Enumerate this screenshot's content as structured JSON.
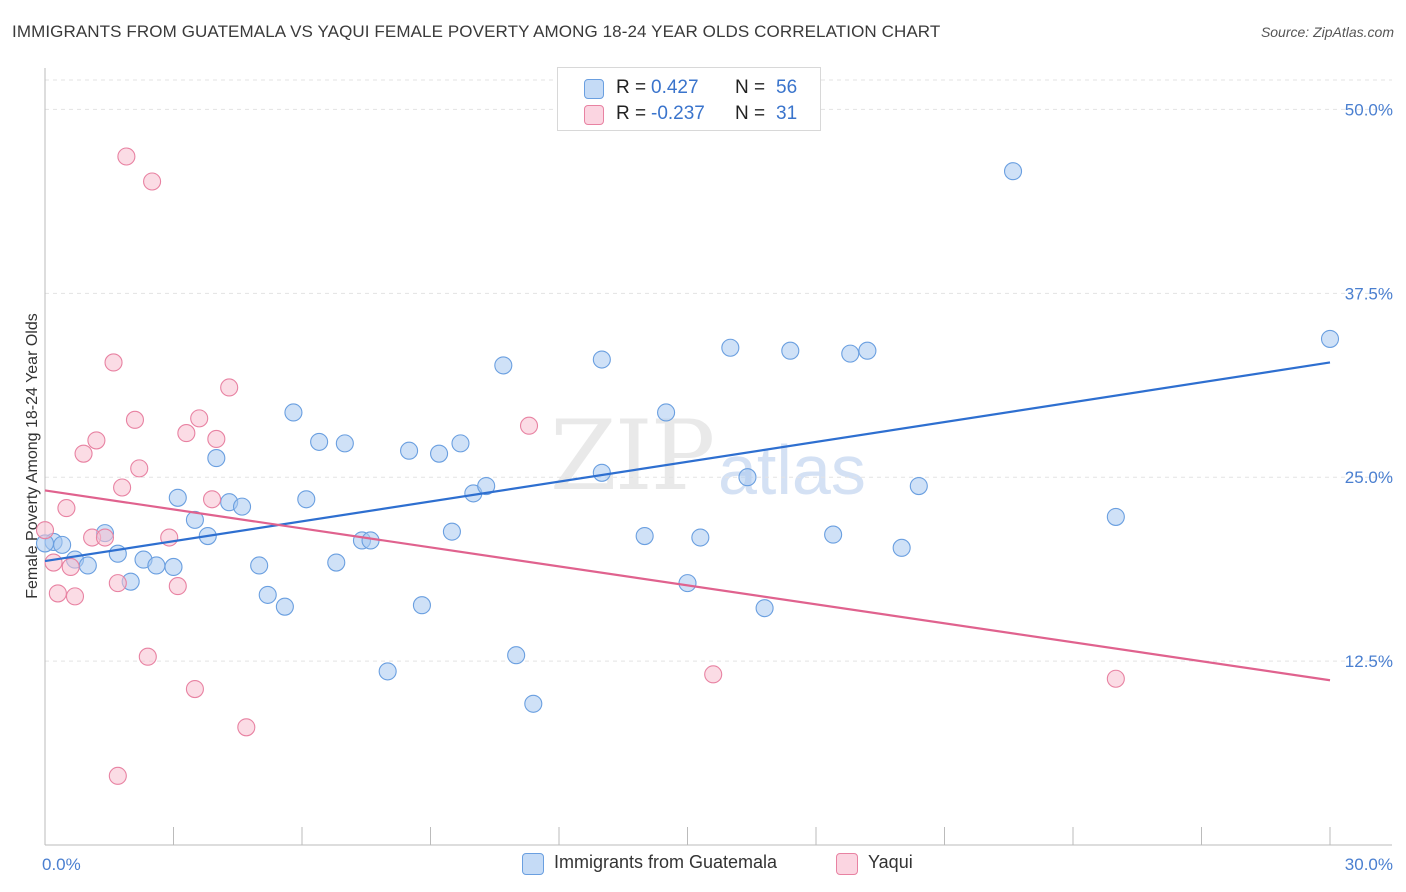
{
  "header": {
    "title": "IMMIGRANTS FROM GUATEMALA VS YAQUI FEMALE POVERTY AMONG 18-24 YEAR OLDS CORRELATION CHART",
    "source": "Source: ZipAtlas.com"
  },
  "watermark": {
    "part1": "ZIP",
    "part2": "atlas"
  },
  "legend_top": {
    "rows": [
      {
        "r_label": "R =",
        "r_value": "0.427",
        "n_label": "N =",
        "n_value": "56",
        "color": "#a8c8f0"
      },
      {
        "r_label": "R =",
        "r_value": "-0.237",
        "n_label": "N =",
        "n_value": "31",
        "color": "#f7bfd0"
      }
    ]
  },
  "legend_bottom": {
    "items": [
      {
        "label": "Immigrants from Guatemala",
        "color": "#a8c8f0"
      },
      {
        "label": "Yaqui",
        "color": "#f7bfd0"
      }
    ]
  },
  "chart_data": {
    "type": "scatter",
    "title": "IMMIGRANTS FROM GUATEMALA VS YAQUI FEMALE POVERTY AMONG 18-24 YEAR OLDS CORRELATION CHART",
    "xlabel": "",
    "ylabel": "Female Poverty Among 18-24 Year Olds",
    "xlim": [
      0,
      30
    ],
    "ylim": [
      0,
      52
    ],
    "x_tick_labels": [
      "0.0%",
      "30.0%"
    ],
    "y_ticks": [
      12.5,
      25.0,
      37.5,
      50.0
    ],
    "y_tick_labels": [
      "12.5%",
      "25.0%",
      "37.5%",
      "50.0%"
    ],
    "grid": true,
    "series": [
      {
        "name": "Immigrants from Guatemala",
        "color": "#6a9fe0",
        "fill": "#a8c8f0",
        "trend": {
          "x": [
            0,
            30
          ],
          "y": [
            19.3,
            32.8
          ]
        },
        "points": [
          [
            0.2,
            20.6
          ],
          [
            0.4,
            20.4
          ],
          [
            0.7,
            19.4
          ],
          [
            1.0,
            19.0
          ],
          [
            1.4,
            21.2
          ],
          [
            1.7,
            19.8
          ],
          [
            2.0,
            17.9
          ],
          [
            2.3,
            19.4
          ],
          [
            2.6,
            19.0
          ],
          [
            3.0,
            18.9
          ],
          [
            3.1,
            23.6
          ],
          [
            3.5,
            22.1
          ],
          [
            3.8,
            21.0
          ],
          [
            4.0,
            26.3
          ],
          [
            4.3,
            23.3
          ],
          [
            4.6,
            23.0
          ],
          [
            5.0,
            19.0
          ],
          [
            5.2,
            17.0
          ],
          [
            5.6,
            16.2
          ],
          [
            5.8,
            29.4
          ],
          [
            6.1,
            23.5
          ],
          [
            6.4,
            27.4
          ],
          [
            6.8,
            19.2
          ],
          [
            7.0,
            27.3
          ],
          [
            7.4,
            20.7
          ],
          [
            7.6,
            20.7
          ],
          [
            8.0,
            11.8
          ],
          [
            8.5,
            26.8
          ],
          [
            8.8,
            16.3
          ],
          [
            9.2,
            26.6
          ],
          [
            9.5,
            21.3
          ],
          [
            9.7,
            27.3
          ],
          [
            10.0,
            23.9
          ],
          [
            10.3,
            24.4
          ],
          [
            10.7,
            32.6
          ],
          [
            11.0,
            12.9
          ],
          [
            11.4,
            9.6
          ],
          [
            13.0,
            33.0
          ],
          [
            13.0,
            25.3
          ],
          [
            14.0,
            21.0
          ],
          [
            14.5,
            29.4
          ],
          [
            15.0,
            17.8
          ],
          [
            15.3,
            20.9
          ],
          [
            16.0,
            33.8
          ],
          [
            16.4,
            25.0
          ],
          [
            16.8,
            16.1
          ],
          [
            17.4,
            33.6
          ],
          [
            18.4,
            21.1
          ],
          [
            18.8,
            33.4
          ],
          [
            19.2,
            33.6
          ],
          [
            20.0,
            20.2
          ],
          [
            20.4,
            24.4
          ],
          [
            22.6,
            45.8
          ],
          [
            25.0,
            22.3
          ],
          [
            30.0,
            34.4
          ],
          [
            0.0,
            20.5
          ]
        ]
      },
      {
        "name": "Yaqui",
        "color": "#e882a2",
        "fill": "#f7bfd0",
        "trend": {
          "x": [
            0,
            30
          ],
          "y": [
            24.1,
            11.2
          ]
        },
        "points": [
          [
            0.0,
            21.4
          ],
          [
            0.2,
            19.2
          ],
          [
            0.3,
            17.1
          ],
          [
            0.5,
            22.9
          ],
          [
            0.6,
            18.9
          ],
          [
            0.7,
            16.9
          ],
          [
            0.9,
            26.6
          ],
          [
            1.1,
            20.9
          ],
          [
            1.2,
            27.5
          ],
          [
            1.4,
            20.9
          ],
          [
            1.6,
            32.8
          ],
          [
            1.7,
            17.8
          ],
          [
            1.7,
            4.7
          ],
          [
            1.8,
            24.3
          ],
          [
            1.9,
            46.8
          ],
          [
            2.1,
            28.9
          ],
          [
            2.2,
            25.6
          ],
          [
            2.4,
            12.8
          ],
          [
            2.5,
            45.1
          ],
          [
            2.9,
            20.9
          ],
          [
            3.1,
            17.6
          ],
          [
            3.3,
            28.0
          ],
          [
            3.5,
            10.6
          ],
          [
            3.6,
            29.0
          ],
          [
            3.9,
            23.5
          ],
          [
            4.0,
            27.6
          ],
          [
            4.3,
            31.1
          ],
          [
            4.7,
            8.0
          ],
          [
            11.3,
            28.5
          ],
          [
            15.6,
            11.6
          ],
          [
            25.0,
            11.3
          ]
        ]
      }
    ]
  }
}
